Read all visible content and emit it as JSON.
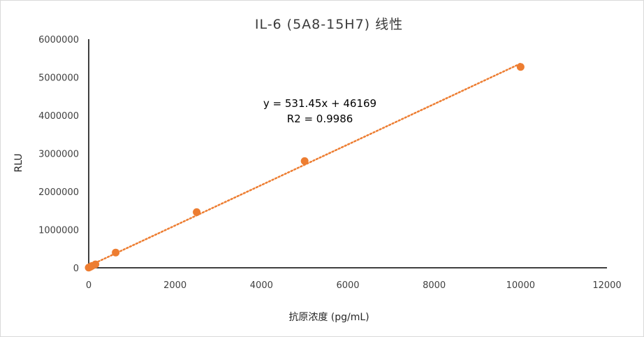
{
  "chart_data": {
    "type": "scatter",
    "title": "IL-6 (5A8-15H7) 线性",
    "xlabel": "抗原浓度 (pg/mL)",
    "ylabel": "RLU",
    "xlim": [
      0,
      12000
    ],
    "ylim": [
      0,
      6000000
    ],
    "x_ticks": [
      "0",
      "2000",
      "4000",
      "6000",
      "8000",
      "10000",
      "12000"
    ],
    "y_ticks": [
      "0",
      "1000000",
      "2000000",
      "3000000",
      "4000000",
      "5000000",
      "6000000"
    ],
    "grid": false,
    "legend": "none",
    "series": [
      {
        "points": [
          {
            "x": 0,
            "y": 5000
          },
          {
            "x": 39,
            "y": 25000
          },
          {
            "x": 78,
            "y": 50000
          },
          {
            "x": 156,
            "y": 90000
          },
          {
            "x": 625,
            "y": 400000
          },
          {
            "x": 2500,
            "y": 1460000
          },
          {
            "x": 5000,
            "y": 2800000
          },
          {
            "x": 10000,
            "y": 5270000
          }
        ]
      }
    ],
    "trendline": {
      "type": "linear",
      "style": "dotted",
      "slope": 531.45,
      "intercept": 46169,
      "equation": "y = 531.45x + 46169",
      "r2_label": "R2 = 0.9986"
    },
    "colors": {
      "marker": "#ed7d31",
      "trendline": "#ed7d31",
      "axis": "#000000",
      "text": "#404040"
    }
  }
}
